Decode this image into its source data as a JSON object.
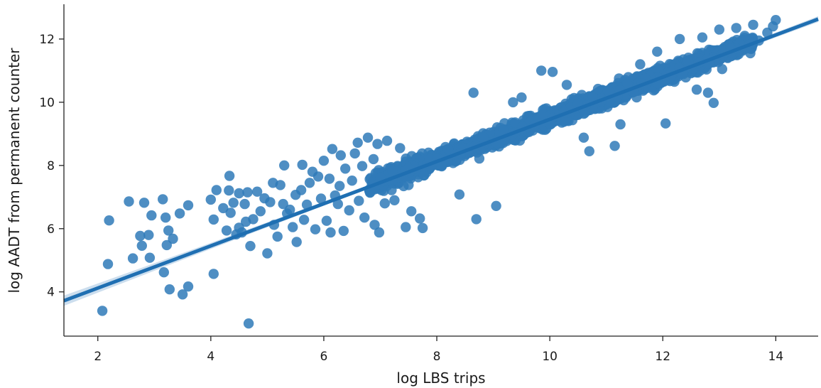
{
  "chart_data": {
    "type": "scatter",
    "xlabel": "log LBS trips",
    "ylabel": "log AADT from permanent counter",
    "xlim": [
      1.4,
      14.75
    ],
    "ylim": [
      2.6,
      13.1
    ],
    "xticks": [
      2,
      4,
      6,
      8,
      10,
      12,
      14
    ],
    "yticks": [
      4,
      6,
      8,
      10,
      12
    ],
    "grid": false,
    "legend": "none",
    "colors": {
      "point": "#2f7ab9",
      "line": "#1f6fb2",
      "band": "#aac8e3"
    },
    "regression": {
      "x": [
        1.4,
        14.75
      ],
      "y": [
        3.72,
        12.63
      ]
    },
    "sparse_points": [
      [
        2.08,
        3.4
      ],
      [
        2.18,
        4.88
      ],
      [
        2.2,
        6.26
      ],
      [
        2.55,
        6.86
      ],
      [
        2.62,
        5.06
      ],
      [
        2.75,
        5.77
      ],
      [
        2.78,
        5.46
      ],
      [
        2.82,
        6.82
      ],
      [
        2.9,
        5.8
      ],
      [
        2.92,
        5.08
      ],
      [
        2.95,
        6.42
      ],
      [
        3.15,
        6.93
      ],
      [
        3.17,
        4.62
      ],
      [
        3.2,
        6.35
      ],
      [
        3.22,
        5.48
      ],
      [
        3.25,
        5.94
      ],
      [
        3.27,
        4.08
      ],
      [
        3.33,
        5.68
      ],
      [
        3.45,
        6.48
      ],
      [
        3.5,
        3.92
      ],
      [
        3.6,
        4.17
      ],
      [
        3.6,
        6.74
      ],
      [
        4.0,
        6.92
      ],
      [
        4.05,
        4.57
      ],
      [
        4.05,
        6.29
      ],
      [
        4.1,
        7.22
      ],
      [
        4.22,
        6.65
      ],
      [
        4.28,
        5.94
      ],
      [
        4.32,
        7.21
      ],
      [
        4.33,
        7.67
      ],
      [
        4.35,
        6.5
      ],
      [
        4.4,
        6.82
      ],
      [
        4.45,
        5.82
      ],
      [
        4.5,
        7.12
      ],
      [
        4.5,
        6.03
      ],
      [
        4.55,
        5.88
      ],
      [
        4.6,
        6.78
      ],
      [
        4.62,
        6.22
      ],
      [
        4.65,
        7.15
      ],
      [
        4.67,
        3.0
      ],
      [
        4.7,
        5.45
      ],
      [
        4.75,
        6.3
      ],
      [
        4.82,
        7.17
      ],
      [
        4.88,
        6.55
      ],
      [
        4.95,
        6.96
      ],
      [
        5.0,
        5.22
      ],
      [
        5.05,
        6.84
      ],
      [
        5.1,
        7.45
      ],
      [
        5.12,
        6.12
      ],
      [
        5.18,
        5.75
      ],
      [
        5.23,
        7.38
      ],
      [
        5.28,
        6.78
      ],
      [
        5.3,
        8.0
      ],
      [
        5.35,
        6.48
      ],
      [
        5.4,
        6.6
      ],
      [
        5.45,
        6.05
      ],
      [
        5.5,
        7.07
      ],
      [
        5.52,
        5.58
      ],
      [
        5.6,
        7.22
      ],
      [
        5.62,
        8.02
      ],
      [
        5.65,
        6.28
      ],
      [
        5.7,
        6.76
      ],
      [
        5.75,
        7.45
      ],
      [
        5.8,
        7.8
      ],
      [
        5.85,
        5.98
      ],
      [
        5.9,
        7.65
      ],
      [
        5.95,
        6.95
      ],
      [
        6.0,
        8.15
      ],
      [
        6.05,
        6.25
      ],
      [
        6.1,
        7.58
      ],
      [
        6.12,
        5.88
      ],
      [
        6.15,
        8.52
      ],
      [
        6.2,
        7.05
      ],
      [
        6.25,
        6.78
      ],
      [
        6.28,
        7.35
      ],
      [
        6.3,
        8.32
      ],
      [
        6.35,
        5.93
      ],
      [
        6.38,
        7.9
      ],
      [
        6.45,
        6.58
      ],
      [
        6.5,
        7.52
      ],
      [
        6.55,
        8.38
      ],
      [
        6.6,
        8.72
      ],
      [
        6.62,
        6.88
      ],
      [
        6.68,
        7.98
      ],
      [
        6.72,
        6.35
      ],
      [
        6.78,
        8.88
      ],
      [
        6.82,
        7.15
      ],
      [
        6.88,
        8.2
      ],
      [
        6.9,
        6.12
      ],
      [
        6.95,
        8.68
      ],
      [
        6.98,
        5.88
      ],
      [
        7.08,
        6.8
      ],
      [
        7.12,
        8.78
      ],
      [
        7.2,
        7.22
      ],
      [
        7.25,
        6.9
      ],
      [
        7.35,
        8.55
      ],
      [
        7.45,
        6.05
      ],
      [
        7.5,
        7.38
      ],
      [
        7.55,
        6.55
      ],
      [
        7.7,
        6.32
      ],
      [
        7.75,
        6.02
      ],
      [
        8.2,
        8.52
      ],
      [
        8.4,
        7.08
      ],
      [
        8.7,
        6.3
      ],
      [
        9.05,
        6.72
      ],
      [
        8.65,
        10.3
      ],
      [
        9.85,
        11.0
      ],
      [
        10.05,
        10.96
      ],
      [
        10.6,
        8.88
      ],
      [
        10.7,
        8.45
      ],
      [
        11.15,
        8.62
      ],
      [
        11.25,
        9.3
      ],
      [
        12.05,
        9.33
      ],
      [
        12.45,
        11.3
      ],
      [
        12.6,
        10.4
      ],
      [
        12.8,
        10.3
      ],
      [
        12.9,
        9.98
      ],
      [
        13.05,
        11.05
      ],
      [
        13.2,
        11.7
      ],
      [
        13.45,
        12.1
      ],
      [
        13.55,
        11.55
      ],
      [
        13.7,
        11.95
      ],
      [
        13.85,
        12.2
      ],
      [
        14.0,
        12.6
      ],
      [
        13.95,
        12.4
      ],
      [
        9.5,
        10.15
      ],
      [
        9.35,
        10.0
      ],
      [
        10.3,
        10.55
      ],
      [
        11.6,
        11.2
      ],
      [
        11.9,
        11.6
      ],
      [
        12.3,
        12.0
      ],
      [
        12.7,
        12.05
      ],
      [
        13.0,
        12.3
      ],
      [
        13.3,
        12.35
      ],
      [
        13.6,
        12.45
      ]
    ],
    "dense_cloud": {
      "description_free": true,
      "x_range": [
        6.8,
        13.6
      ],
      "spread": 0.55,
      "count": 2600
    }
  }
}
